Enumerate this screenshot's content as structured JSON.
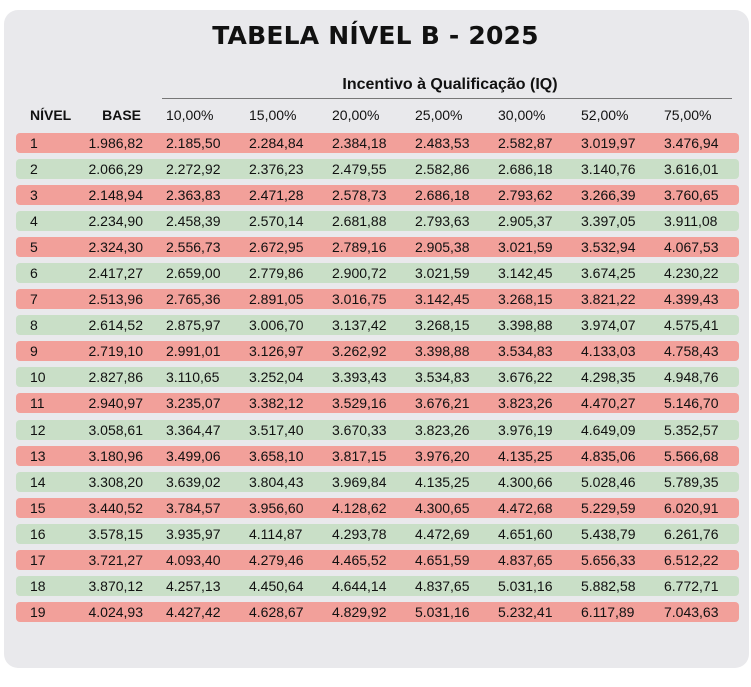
{
  "title": "TABELA NÍVEL B - 2025",
  "iq_label": "Incentivo à Qualificação (IQ)",
  "headers": [
    "NÍVEL",
    "BASE",
    "10,00%",
    "15,00%",
    "20,00%",
    "25,00%",
    "30,00%",
    "52,00%",
    "75,00%"
  ],
  "row_colors": {
    "odd": "#f2a09a",
    "even": "#c9dfc7"
  },
  "rows": [
    [
      "1",
      "1.986,82",
      "2.185,50",
      "2.284,84",
      "2.384,18",
      "2.483,53",
      "2.582,87",
      "3.019,97",
      "3.476,94"
    ],
    [
      "2",
      "2.066,29",
      "2.272,92",
      "2.376,23",
      "2.479,55",
      "2.582,86",
      "2.686,18",
      "3.140,76",
      "3.616,01"
    ],
    [
      "3",
      "2.148,94",
      "2.363,83",
      "2.471,28",
      "2.578,73",
      "2.686,18",
      "2.793,62",
      "3.266,39",
      "3.760,65"
    ],
    [
      "4",
      "2.234,90",
      "2.458,39",
      "2.570,14",
      "2.681,88",
      "2.793,63",
      "2.905,37",
      "3.397,05",
      "3.911,08"
    ],
    [
      "5",
      "2.324,30",
      "2.556,73",
      "2.672,95",
      "2.789,16",
      "2.905,38",
      "3.021,59",
      "3.532,94",
      "4.067,53"
    ],
    [
      "6",
      "2.417,27",
      "2.659,00",
      "2.779,86",
      "2.900,72",
      "3.021,59",
      "3.142,45",
      "3.674,25",
      "4.230,22"
    ],
    [
      "7",
      "2.513,96",
      "2.765,36",
      "2.891,05",
      "3.016,75",
      "3.142,45",
      "3.268,15",
      "3.821,22",
      "4.399,43"
    ],
    [
      "8",
      "2.614,52",
      "2.875,97",
      "3.006,70",
      "3.137,42",
      "3.268,15",
      "3.398,88",
      "3.974,07",
      "4.575,41"
    ],
    [
      "9",
      "2.719,10",
      "2.991,01",
      "3.126,97",
      "3.262,92",
      "3.398,88",
      "3.534,83",
      "4.133,03",
      "4.758,43"
    ],
    [
      "10",
      "2.827,86",
      "3.110,65",
      "3.252,04",
      "3.393,43",
      "3.534,83",
      "3.676,22",
      "4.298,35",
      "4.948,76"
    ],
    [
      "11",
      "2.940,97",
      "3.235,07",
      "3.382,12",
      "3.529,16",
      "3.676,21",
      "3.823,26",
      "4.470,27",
      "5.146,70"
    ],
    [
      "12",
      "3.058,61",
      "3.364,47",
      "3.517,40",
      "3.670,33",
      "3.823,26",
      "3.976,19",
      "4.649,09",
      "5.352,57"
    ],
    [
      "13",
      "3.180,96",
      "3.499,06",
      "3.658,10",
      "3.817,15",
      "3.976,20",
      "4.135,25",
      "4.835,06",
      "5.566,68"
    ],
    [
      "14",
      "3.308,20",
      "3.639,02",
      "3.804,43",
      "3.969,84",
      "4.135,25",
      "4.300,66",
      "5.028,46",
      "5.789,35"
    ],
    [
      "15",
      "3.440,52",
      "3.784,57",
      "3.956,60",
      "4.128,62",
      "4.300,65",
      "4.472,68",
      "5.229,59",
      "6.020,91"
    ],
    [
      "16",
      "3.578,15",
      "3.935,97",
      "4.114,87",
      "4.293,78",
      "4.472,69",
      "4.651,60",
      "5.438,79",
      "6.261,76"
    ],
    [
      "17",
      "3.721,27",
      "4.093,40",
      "4.279,46",
      "4.465,52",
      "4.651,59",
      "4.837,65",
      "5.656,33",
      "6.512,22"
    ],
    [
      "18",
      "3.870,12",
      "4.257,13",
      "4.450,64",
      "4.644,14",
      "4.837,65",
      "5.031,16",
      "5.882,58",
      "6.772,71"
    ],
    [
      "19",
      "4.024,93",
      "4.427,42",
      "4.628,67",
      "4.829,92",
      "5.031,16",
      "5.232,41",
      "6.117,89",
      "7.043,63"
    ]
  ]
}
